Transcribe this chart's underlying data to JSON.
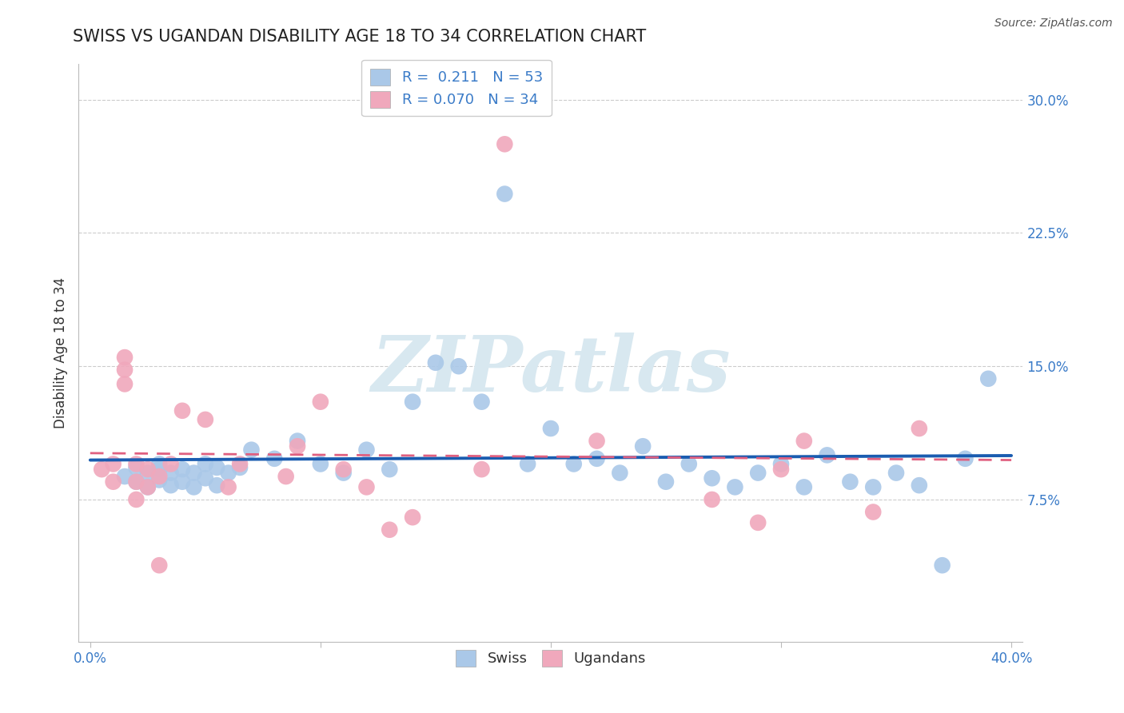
{
  "title": "SWISS VS UGANDAN DISABILITY AGE 18 TO 34 CORRELATION CHART",
  "source": "Source: ZipAtlas.com",
  "ylabel": "Disability Age 18 to 34",
  "xlim": [
    -0.005,
    0.405
  ],
  "ylim": [
    -0.005,
    0.32
  ],
  "xticks": [
    0.0,
    0.1,
    0.2,
    0.3,
    0.4
  ],
  "xticklabels": [
    "0.0%",
    "",
    "",
    "",
    "40.0%"
  ],
  "yticks": [
    0.075,
    0.15,
    0.225,
    0.3
  ],
  "yticklabels": [
    "7.5%",
    "15.0%",
    "22.5%",
    "30.0%"
  ],
  "swiss_R": 0.211,
  "swiss_N": 53,
  "ugandan_R": 0.07,
  "ugandan_N": 34,
  "swiss_color": "#aac8e8",
  "ugandan_color": "#f0a8bc",
  "swiss_line_color": "#1a5cb0",
  "ugandan_line_color": "#e06080",
  "swiss_x": [
    0.015,
    0.02,
    0.02,
    0.025,
    0.025,
    0.03,
    0.03,
    0.03,
    0.035,
    0.035,
    0.04,
    0.04,
    0.045,
    0.045,
    0.05,
    0.05,
    0.055,
    0.055,
    0.06,
    0.065,
    0.07,
    0.08,
    0.09,
    0.1,
    0.11,
    0.12,
    0.13,
    0.14,
    0.16,
    0.17,
    0.19,
    0.2,
    0.21,
    0.22,
    0.23,
    0.24,
    0.25,
    0.26,
    0.27,
    0.28,
    0.29,
    0.3,
    0.31,
    0.32,
    0.33,
    0.34,
    0.35,
    0.36,
    0.38,
    0.39,
    0.15,
    0.18,
    0.37
  ],
  "swiss_y": [
    0.088,
    0.093,
    0.085,
    0.09,
    0.082,
    0.092,
    0.086,
    0.095,
    0.09,
    0.083,
    0.092,
    0.085,
    0.09,
    0.082,
    0.095,
    0.087,
    0.093,
    0.083,
    0.09,
    0.093,
    0.103,
    0.098,
    0.108,
    0.095,
    0.09,
    0.103,
    0.092,
    0.13,
    0.15,
    0.13,
    0.095,
    0.115,
    0.095,
    0.098,
    0.09,
    0.105,
    0.085,
    0.095,
    0.087,
    0.082,
    0.09,
    0.095,
    0.082,
    0.1,
    0.085,
    0.082,
    0.09,
    0.083,
    0.098,
    0.143,
    0.152,
    0.247,
    0.038
  ],
  "ugandan_x": [
    0.005,
    0.01,
    0.01,
    0.015,
    0.015,
    0.015,
    0.02,
    0.02,
    0.02,
    0.025,
    0.025,
    0.03,
    0.03,
    0.035,
    0.04,
    0.05,
    0.06,
    0.065,
    0.085,
    0.09,
    0.1,
    0.11,
    0.12,
    0.13,
    0.14,
    0.17,
    0.18,
    0.22,
    0.27,
    0.29,
    0.3,
    0.31,
    0.34,
    0.36
  ],
  "ugandan_y": [
    0.092,
    0.095,
    0.085,
    0.155,
    0.148,
    0.14,
    0.095,
    0.085,
    0.075,
    0.092,
    0.082,
    0.088,
    0.038,
    0.095,
    0.125,
    0.12,
    0.082,
    0.095,
    0.088,
    0.105,
    0.13,
    0.092,
    0.082,
    0.058,
    0.065,
    0.092,
    0.275,
    0.108,
    0.075,
    0.062,
    0.092,
    0.108,
    0.068,
    0.115
  ],
  "background_color": "#ffffff",
  "grid_color": "#cccccc",
  "title_fontsize": 15,
  "label_fontsize": 12,
  "tick_fontsize": 12,
  "tick_color": "#3a7bc8",
  "watermark_color": "#d8e8f0"
}
